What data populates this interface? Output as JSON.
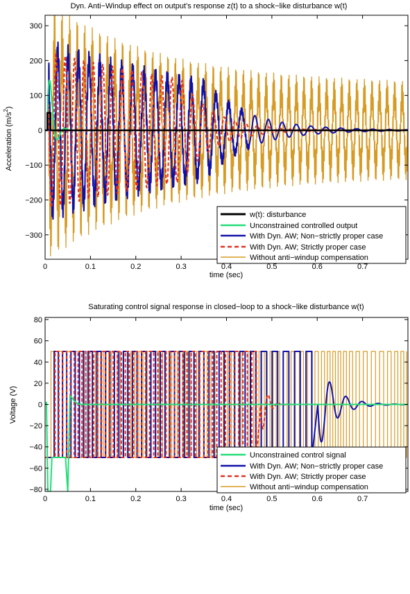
{
  "colors": {
    "disturbance": "#000000",
    "unconstrained": "#22dd77",
    "nonstrict": "#1010a8",
    "strict": "#e03020",
    "noaw": "#d79a22"
  },
  "chart_data": [
    {
      "type": "line",
      "title": "Dyn. Anti−Windup effect on output’s response z(t) to a shock−like disturbance w(t)",
      "xlabel": "time (sec)",
      "ylabel_main": "Acceleration (m/s",
      "ylabel_sup": "2",
      "ylabel_end": ")",
      "xlim": [
        0,
        0.8
      ],
      "ylim": [
        -370,
        330
      ],
      "xticks": [
        0,
        0.1,
        0.2,
        0.3,
        0.4,
        0.5,
        0.6,
        0.7
      ],
      "xtick_labels": [
        "0",
        "0.1",
        "0.2",
        "0.3",
        "0.4",
        "0.5",
        "0.6",
        "0.7"
      ],
      "yticks": [
        -300,
        -200,
        -100,
        0,
        100,
        200,
        300
      ],
      "ytick_labels": [
        "−300",
        "−200",
        "−100",
        "0",
        "100",
        "200",
        "300"
      ],
      "grid": false,
      "legend_position": "bottom-right",
      "series": [
        {
          "name": "w(t): disturbance",
          "key": "disturbance",
          "approx_values": {
            "pulse_start": 0.005,
            "pulse_end": 0.012,
            "pulse_level": 50
          }
        },
        {
          "name": "Unconstrained controlled output",
          "key": "unconstrained",
          "approx_values": {
            "peak": 130,
            "peak_time": 0.012,
            "settle_time": 0.06
          }
        },
        {
          "name": "With Dyn. AW; Non−strictly proper case",
          "key": "nonstrict",
          "approx_values": {
            "max_amplitude": 225,
            "frequency_hz": 45,
            "decay_to_zero_time": 0.65
          }
        },
        {
          "name": "With Dyn. AW; Strictly proper case",
          "key": "strict",
          "approx_values": {
            "max_amplitude": 220,
            "frequency_hz": 50,
            "decay_to_zero_time": 0.6
          }
        },
        {
          "name": "Without anti−windup compensation",
          "key": "noaw",
          "approx_values": {
            "max_amplitude": 305,
            "frequency_hz": 60,
            "final_amplitude": 115
          }
        }
      ]
    },
    {
      "type": "line",
      "title": "Saturating control signal response in closed−loop to a shock−like disturbance w(t)",
      "xlabel": "time (sec)",
      "ylabel": "Voltage (V)",
      "xlim": [
        0,
        0.8
      ],
      "ylim": [
        -82,
        82
      ],
      "xticks": [
        0,
        0.1,
        0.2,
        0.3,
        0.4,
        0.5,
        0.6,
        0.7
      ],
      "xtick_labels": [
        "0",
        "0.1",
        "0.2",
        "0.3",
        "0.4",
        "0.5",
        "0.6",
        "0.7"
      ],
      "yticks": [
        -80,
        -60,
        -40,
        -20,
        0,
        20,
        40,
        60,
        80
      ],
      "ytick_labels": [
        "−80",
        "−60",
        "−40",
        "−20",
        "0",
        "20",
        "40",
        "60",
        "80"
      ],
      "grid": false,
      "legend_position": "bottom-right",
      "series": [
        {
          "name": "Unconstrained control signal",
          "key": "unconstrained",
          "approx_values": {
            "min": -82,
            "spike_time": 0.05,
            "settle_time": 0.08
          }
        },
        {
          "name": "With Dyn. AW; Non−strictly proper case",
          "key": "nonstrict",
          "approx_values": {
            "saturation_limits": [
              -50,
              50
            ],
            "saturated_until": 0.6,
            "decay_to_zero_time": 0.7
          }
        },
        {
          "name": "With Dyn. AW; Strictly proper case",
          "key": "strict",
          "approx_values": {
            "saturation_limits": [
              -50,
              50
            ],
            "saturated_until": 0.47,
            "decay_to_zero_time": 0.5
          }
        },
        {
          "name": "Without anti−windup compensation",
          "key": "noaw",
          "approx_values": {
            "saturation_limits": [
              -50,
              50
            ],
            "square_wave_frequency_hz": 60
          }
        }
      ]
    }
  ]
}
